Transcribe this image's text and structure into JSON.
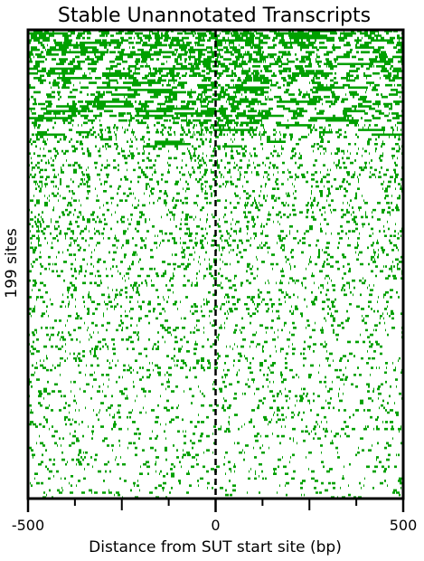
{
  "chart_data": {
    "type": "heatmap",
    "title": "Stable Unannotated Transcripts",
    "xlabel": "Distance from SUT start site (bp)",
    "ylabel": "199 sites",
    "xlim": [
      -500,
      500
    ],
    "rows": 199,
    "x_ticks": [
      {
        "value": -500,
        "label": "-500"
      },
      {
        "value": 0,
        "label": "0"
      },
      {
        "value": 500,
        "label": "500"
      }
    ],
    "x_minor_ticks": [
      -375,
      -250,
      -125,
      125,
      250,
      375
    ],
    "reference_line": {
      "x": 0,
      "style": "dashed"
    },
    "density_trend": "signal densest in the top rows, gradually sparser toward the bottom",
    "grid": false,
    "legend": "none",
    "colors": {
      "signal": "#00a000",
      "background": "#ffffff",
      "frame": "#000000"
    }
  }
}
